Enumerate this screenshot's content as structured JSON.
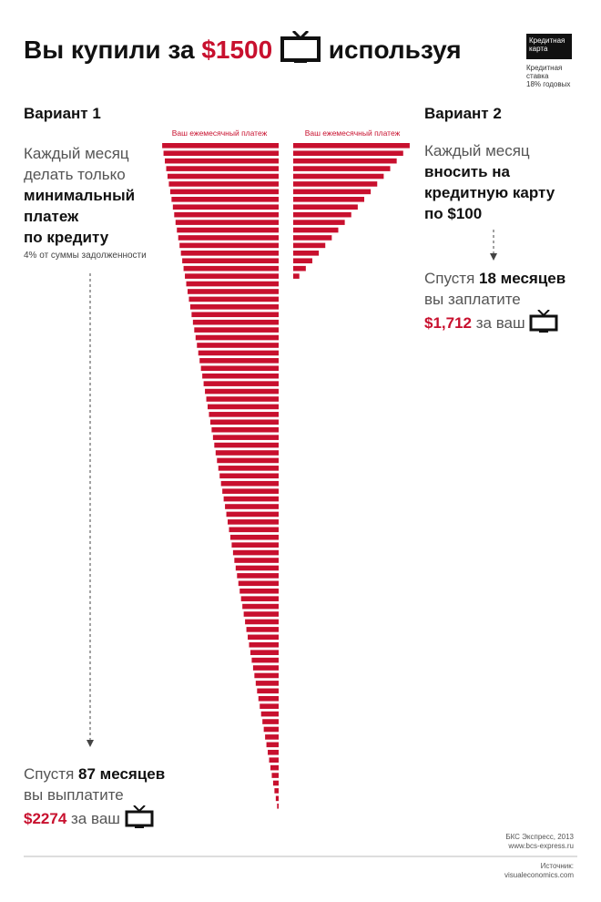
{
  "header": {
    "title_start": "Вы купили за",
    "price": "$1500",
    "title_end": "используя",
    "card": "Кредитная карта",
    "rate_label": "Кредитная ставка",
    "rate": "18% годовых"
  },
  "variant1": {
    "heading": "Вариант 1",
    "line1": "Каждый месяц",
    "line2": "делать только",
    "bold1": "минимальный",
    "bold2": "платеж",
    "bold3": "по кредиту",
    "note": "4% от суммы задолженности",
    "after": "Спустя",
    "months": "87 месяцев",
    "pay_text": "вы выплатите",
    "total": "$2274",
    "for_your": "за ваш"
  },
  "variant2": {
    "heading": "Вариант 2",
    "line1": "Каждый месяц",
    "bold1": "вносить на",
    "bold2": "кредитную карту",
    "bold3": "по $100",
    "after": "Спустя",
    "months": "18 месяцев",
    "pay_text": "вы заплатите",
    "total": "$1,712",
    "for_your": "за ваш"
  },
  "footer": {
    "publisher": "БКС Экспресс, 2013",
    "site": "www.bcs-express.ru",
    "source_label": "Источник:",
    "source": "visualeconomics.com"
  },
  "chart_data": [
    {
      "type": "bar",
      "title": "Ваш ежемесячный платеж",
      "align": "right",
      "color": "#c8102e",
      "xlim": [
        0,
        62
      ],
      "values": [
        61,
        60.3,
        59.6,
        58.9,
        58.2,
        57.5,
        56.8,
        56.1,
        55.4,
        54.7,
        54,
        53.3,
        52.6,
        51.9,
        51.2,
        50.5,
        49.8,
        49.1,
        48.4,
        47.7,
        47,
        46.3,
        45.6,
        44.9,
        44.2,
        43.5,
        42.8,
        42.1,
        41.4,
        40.7,
        40,
        39.3,
        38.6,
        37.9,
        37.2,
        36.5,
        35.8,
        35.1,
        34.4,
        33.7,
        33,
        32.3,
        31.6,
        30.9,
        30.2,
        29.5,
        28.8,
        28.1,
        27.4,
        26.7,
        26,
        25.3,
        24.6,
        23.9,
        23.2,
        22.5,
        21.8,
        21.1,
        20.4,
        19.7,
        19,
        18.3,
        17.6,
        16.9,
        16.2,
        15.5,
        14.8,
        14.1,
        13.4,
        12.7,
        12,
        11.3,
        10.6,
        9.9,
        9.2,
        8.5,
        7.8,
        7.1,
        6.4,
        5.7,
        5,
        4.3,
        3.6,
        2.9,
        2.2,
        1.5,
        0.8
      ]
    },
    {
      "type": "bar",
      "title": "Ваш ежемесячный платеж",
      "align": "left",
      "color": "#c8102e",
      "xlim": [
        0,
        62
      ],
      "values": [
        61,
        57.6,
        54.2,
        50.8,
        47.4,
        44,
        40.6,
        37.2,
        33.8,
        30.4,
        27,
        23.6,
        20.2,
        16.8,
        13.4,
        10,
        6.6,
        3.2
      ]
    }
  ]
}
